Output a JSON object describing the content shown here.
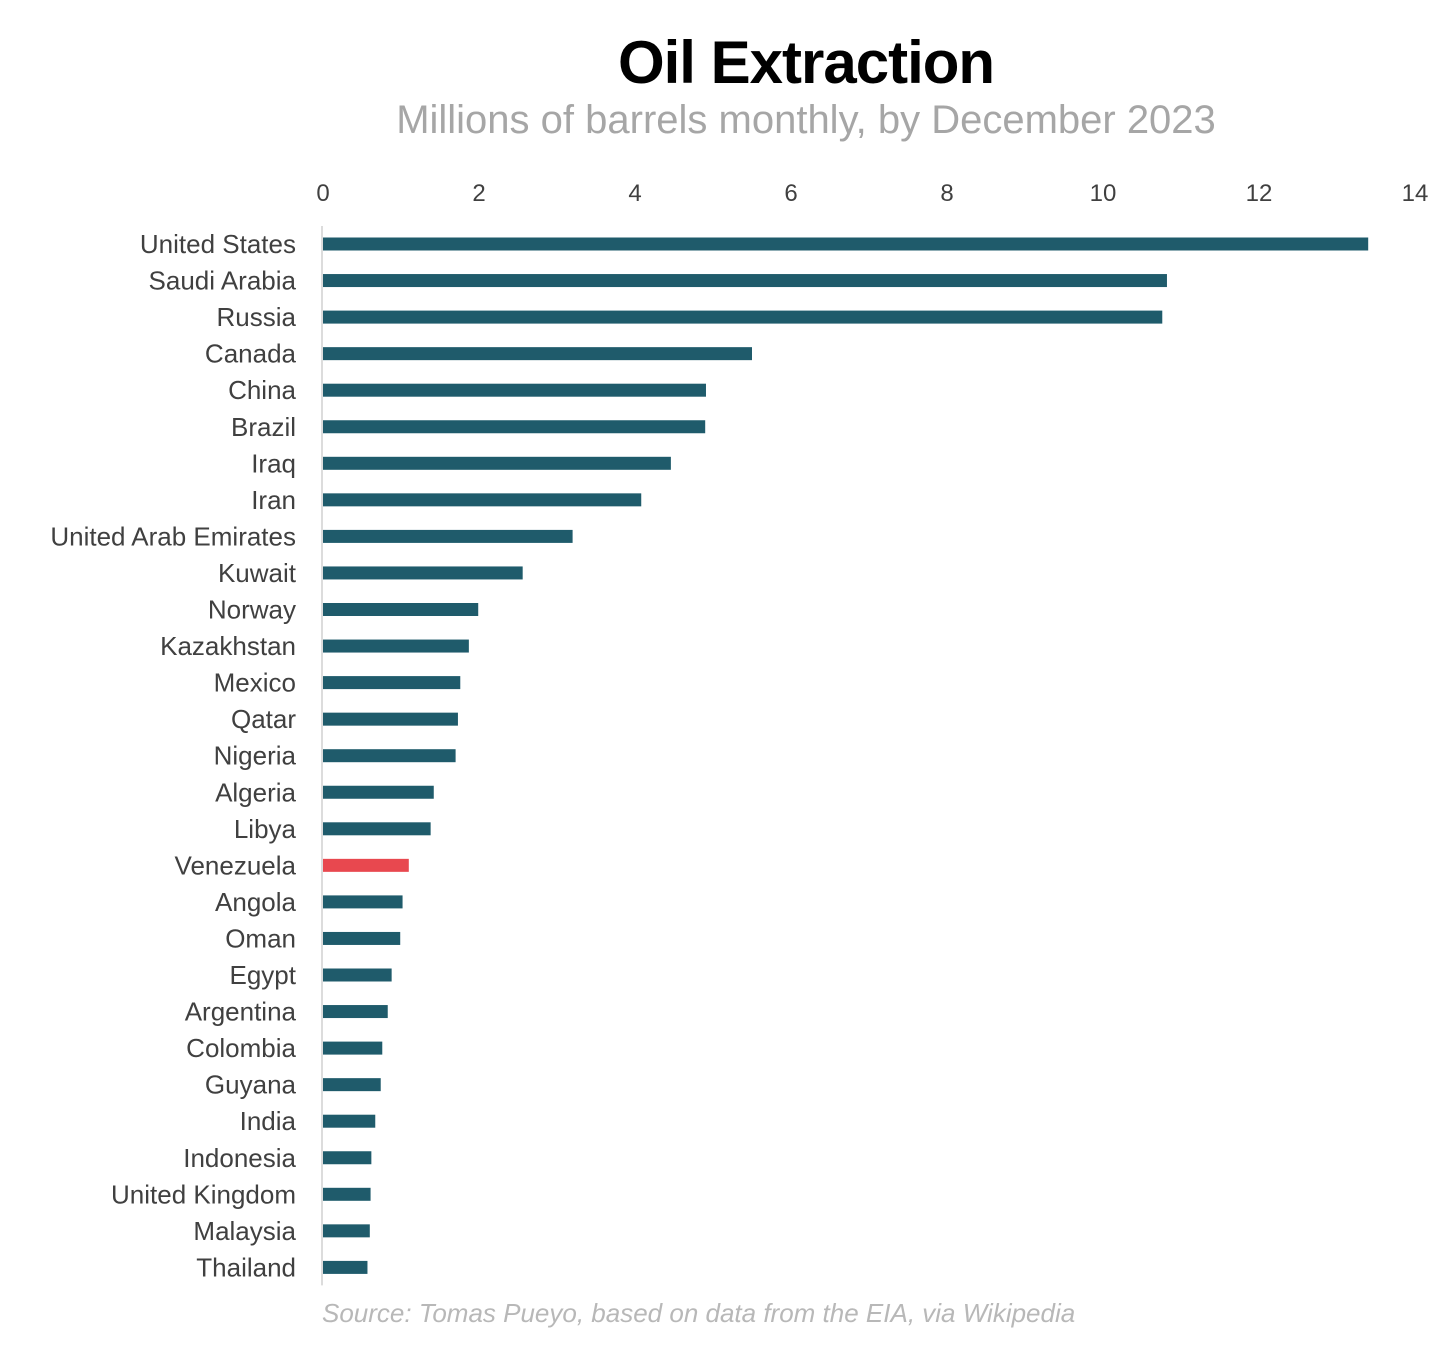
{
  "chart_data": {
    "type": "bar",
    "orientation": "horizontal",
    "title": "Oil Extraction",
    "subtitle": "Millions of barrels monthly, by December 2023",
    "source": "Source: Tomas Pueyo, based on data from the EIA, via Wikipedia",
    "xlim": [
      0,
      14
    ],
    "xticks": [
      0,
      2,
      4,
      6,
      8,
      10,
      12,
      14
    ],
    "tick_position": "top",
    "grid": false,
    "categories": [
      "United States",
      "Saudi Arabia",
      "Russia",
      "Canada",
      "China",
      "Brazil",
      "Iraq",
      "Iran",
      "United Arab Emirates",
      "Kuwait",
      "Norway",
      "Kazakhstan",
      "Mexico",
      "Qatar",
      "Nigeria",
      "Algeria",
      "Libya",
      "Venezuela",
      "Angola",
      "Oman",
      "Egypt",
      "Argentina",
      "Colombia",
      "Guyana",
      "India",
      "Indonesia",
      "United Kingdom",
      "Malaysia",
      "Thailand"
    ],
    "values": [
      13.4,
      10.82,
      10.76,
      5.5,
      4.91,
      4.9,
      4.46,
      4.08,
      3.2,
      2.56,
      1.99,
      1.87,
      1.76,
      1.73,
      1.7,
      1.42,
      1.38,
      1.1,
      1.02,
      0.99,
      0.88,
      0.83,
      0.76,
      0.74,
      0.67,
      0.62,
      0.61,
      0.6,
      0.57
    ],
    "colors": {
      "default": "#1f5b6b",
      "highlight": "#e8484f",
      "axis": "#d0d0d0"
    },
    "highlight": "Venezuela"
  }
}
